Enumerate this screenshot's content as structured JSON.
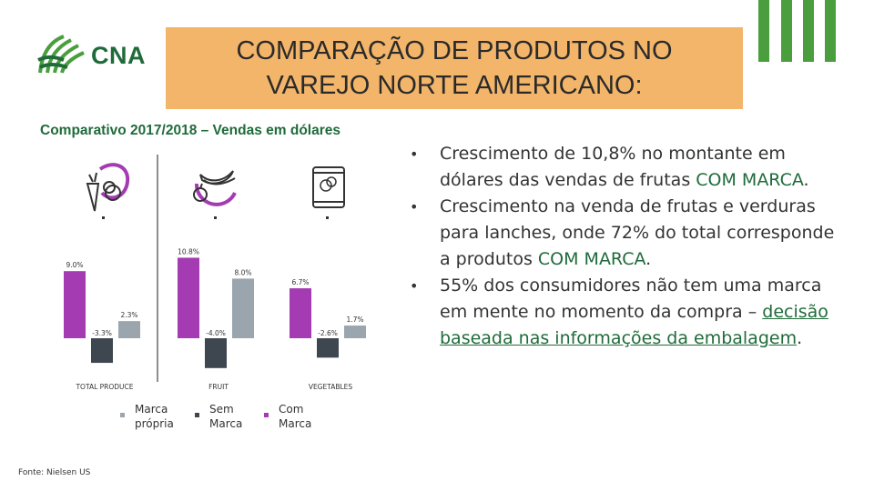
{
  "logo": {
    "text": "CNA"
  },
  "header": {
    "title": "COMPARAÇÃO DE PRODUTOS NO VAREJO NORTE AMERICANO:"
  },
  "subtitle": "Comparativo 2017/2018 – Vendas em dólares",
  "colors": {
    "marca_propria": "#9aa5ae",
    "sem_marca": "#3e4650",
    "com_marca": "#a43bb2",
    "accent_green": "#1f6b3a",
    "title_bg": "#f3b56a",
    "deco_green": "#4a9e3d"
  },
  "chart_data": {
    "type": "bar",
    "categories": [
      "TOTAL PRODUCE",
      "FRUIT",
      "VEGETABLES"
    ],
    "series": [
      {
        "name": "Com Marca",
        "values": [
          9.0,
          10.8,
          6.7
        ],
        "labels": [
          "9.0%",
          "10.8%",
          "6.7%"
        ]
      },
      {
        "name": "Sem Marca",
        "values": [
          -3.3,
          -4.0,
          -2.6
        ],
        "labels": [
          "-3.3%",
          "-4.0%",
          "-2.6%"
        ]
      },
      {
        "name": "Marca própria",
        "values": [
          2.3,
          8.0,
          1.7
        ],
        "labels": [
          "2.3%",
          "8.0%",
          "1.7%"
        ]
      }
    ],
    "category_icons": [
      "produce-icon",
      "fruit-icon",
      "vegetables-bag-icon"
    ],
    "title": "",
    "xlabel": "",
    "ylabel": "",
    "ylim": [
      -5,
      12
    ],
    "grid": false,
    "legend_position": "bottom"
  },
  "legend": [
    {
      "label": "Marca\nprópria",
      "color": "#9aa5ae"
    },
    {
      "label": "Sem\nMarca",
      "color": "#3e4650"
    },
    {
      "label": "Com\nMarca",
      "color": "#a43bb2"
    }
  ],
  "source": "Fonte: Nielsen US",
  "bullets": {
    "b1_pre": "Crescimento de 10,8% no montante em dólares das vendas de frutas ",
    "b1_hl": "COM MARCA",
    "b1_post": ".",
    "b2_pre": "Crescimento na venda de frutas e verduras para lanches, onde 72% do total corresponde a produtos ",
    "b2_hl": "COM MARCA",
    "b2_post": ".",
    "b3_pre": "55% dos consumidores não tem uma marca em mente no momento da compra – ",
    "b3_ul": "decisão baseada nas informações da embalagem",
    "b3_post": "."
  }
}
